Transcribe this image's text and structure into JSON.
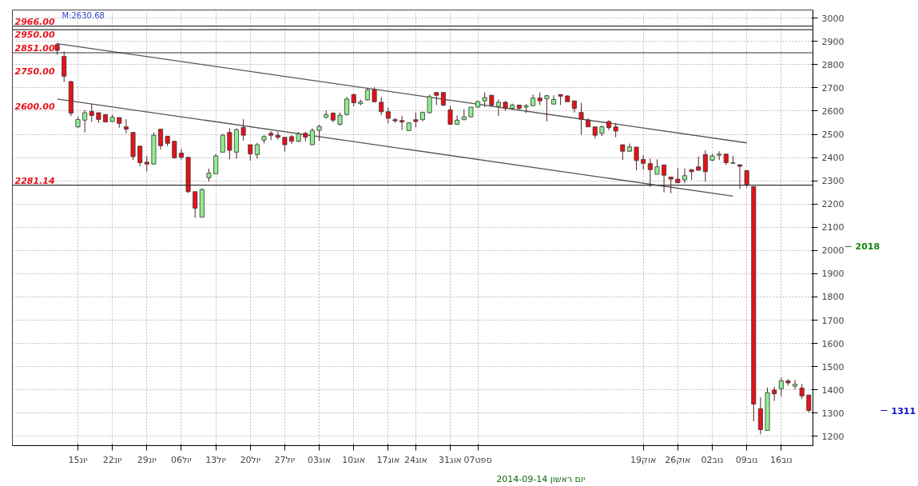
{
  "chart_data": {
    "type": "candlestick",
    "categories": [
      null,
      null,
      null,
      "15יונ",
      null,
      null,
      null,
      null,
      "22יונ",
      null,
      null,
      null,
      null,
      "29יונ",
      null,
      null,
      null,
      null,
      "06יול",
      null,
      null,
      null,
      null,
      "13יול",
      null,
      null,
      null,
      null,
      "20יול",
      null,
      null,
      null,
      null,
      "27יול",
      null,
      null,
      null,
      null,
      "03אוג",
      null,
      null,
      null,
      null,
      "10אוג",
      null,
      null,
      null,
      null,
      "17אוג",
      null,
      null,
      null,
      "24אוג",
      null,
      null,
      null,
      null,
      "31אוג",
      null,
      null,
      null,
      "07ספט",
      null,
      null,
      null,
      null,
      null,
      null,
      null,
      null,
      null,
      null,
      null,
      null,
      null,
      null,
      null,
      null,
      null,
      null,
      null,
      null,
      null,
      null,
      null,
      "19אוק",
      null,
      null,
      null,
      null,
      "26אוק",
      null,
      null,
      null,
      null,
      "02נוב",
      null,
      null,
      null,
      null,
      "09נוב",
      null,
      null,
      null,
      null,
      "16נוב",
      null,
      null,
      null,
      null
    ],
    "ohlc": [
      [
        2886,
        2894,
        2842,
        2861
      ],
      [
        2835,
        2857,
        2725,
        2750
      ],
      [
        2727,
        2730,
        2578,
        2591
      ],
      [
        2532,
        2575,
        2528,
        2564
      ],
      [
        2561,
        2605,
        2508,
        2593
      ],
      [
        2598,
        2631,
        2553,
        2581
      ],
      [
        2593,
        2593,
        2549,
        2564
      ],
      [
        2585,
        2587,
        2553,
        2553
      ],
      [
        2555,
        2585,
        2553,
        2573
      ],
      [
        2572,
        2572,
        2528,
        2547
      ],
      [
        2532,
        2565,
        2504,
        2522
      ],
      [
        2508,
        2508,
        2389,
        2404
      ],
      [
        2449,
        2449,
        2363,
        2378
      ],
      [
        2380,
        2407,
        2340,
        2372
      ],
      [
        2372,
        2508,
        2368,
        2496
      ],
      [
        2522,
        2522,
        2434,
        2451
      ],
      [
        2492,
        2492,
        2449,
        2461
      ],
      [
        2470,
        2470,
        2395,
        2399
      ],
      [
        2419,
        2437,
        2392,
        2401
      ],
      [
        2401,
        2401,
        2247,
        2253
      ],
      [
        2253,
        2253,
        2141,
        2182
      ],
      [
        2143,
        2268,
        2143,
        2262
      ],
      [
        2313,
        2352,
        2297,
        2333
      ],
      [
        2330,
        2415,
        2330,
        2407
      ],
      [
        2423,
        2502,
        2423,
        2496
      ],
      [
        2508,
        2526,
        2392,
        2431
      ],
      [
        2423,
        2526,
        2395,
        2520
      ],
      [
        2529,
        2565,
        2472,
        2496
      ],
      [
        2455,
        2455,
        2387,
        2416
      ],
      [
        2413,
        2463,
        2395,
        2455
      ],
      [
        2475,
        2496,
        2461,
        2490
      ],
      [
        2504,
        2514,
        2475,
        2496
      ],
      [
        2496,
        2511,
        2478,
        2487
      ],
      [
        2487,
        2487,
        2425,
        2455
      ],
      [
        2490,
        2496,
        2458,
        2470
      ],
      [
        2470,
        2510,
        2466,
        2502
      ],
      [
        2504,
        2510,
        2470,
        2487
      ],
      [
        2455,
        2526,
        2455,
        2517
      ],
      [
        2517,
        2541,
        2472,
        2534
      ],
      [
        2573,
        2603,
        2569,
        2585
      ],
      [
        2591,
        2595,
        2552,
        2561
      ],
      [
        2543,
        2594,
        2538,
        2582
      ],
      [
        2585,
        2660,
        2580,
        2652
      ],
      [
        2671,
        2675,
        2620,
        2636
      ],
      [
        2632,
        2650,
        2625,
        2640
      ],
      [
        2648,
        2697,
        2645,
        2691
      ],
      [
        2691,
        2703,
        2637,
        2640
      ],
      [
        2638,
        2660,
        2583,
        2597
      ],
      [
        2597,
        2615,
        2547,
        2569
      ],
      [
        2563,
        2570,
        2550,
        2558
      ],
      [
        2559,
        2580,
        2518,
        2553
      ],
      [
        2516,
        2552,
        2514,
        2549
      ],
      [
        2563,
        2594,
        2530,
        2555
      ],
      [
        2563,
        2597,
        2556,
        2594
      ],
      [
        2593,
        2670,
        2590,
        2662
      ],
      [
        2680,
        2680,
        2626,
        2668
      ],
      [
        2680,
        2680,
        2620,
        2626
      ],
      [
        2605,
        2623,
        2543,
        2543
      ],
      [
        2543,
        2581,
        2543,
        2561
      ],
      [
        2563,
        2608,
        2561,
        2575
      ],
      [
        2575,
        2617,
        2575,
        2617
      ],
      [
        2617,
        2644,
        2614,
        2641
      ],
      [
        2644,
        2680,
        2617,
        2658
      ],
      [
        2668,
        2668,
        2617,
        2626
      ],
      [
        2620,
        2650,
        2579,
        2638
      ],
      [
        2638,
        2644,
        2600,
        2612
      ],
      [
        2612,
        2632,
        2605,
        2626
      ],
      [
        2626,
        2626,
        2605,
        2612
      ],
      [
        2617,
        2630,
        2591,
        2623
      ],
      [
        2623,
        2671,
        2623,
        2656
      ],
      [
        2656,
        2680,
        2626,
        2644
      ],
      [
        2653,
        2670,
        2555,
        2666
      ],
      [
        2630,
        2668,
        2630,
        2650
      ],
      [
        2671,
        2671,
        2626,
        2664
      ],
      [
        2665,
        2668,
        2640,
        2640
      ],
      [
        2644,
        2644,
        2593,
        2611
      ],
      [
        2594,
        2635,
        2498,
        2565
      ],
      [
        2561,
        2569,
        2532,
        2532
      ],
      [
        2532,
        2532,
        2482,
        2496
      ],
      [
        2504,
        2538,
        2492,
        2532
      ],
      [
        2555,
        2561,
        2517,
        2529
      ],
      [
        2532,
        2549,
        2487,
        2514
      ],
      [
        2455,
        2455,
        2389,
        2427
      ],
      [
        2427,
        2460,
        2425,
        2446
      ],
      [
        2445,
        2445,
        2345,
        2387
      ],
      [
        2392,
        2410,
        2348,
        2375
      ],
      [
        2374,
        2395,
        2273,
        2348
      ],
      [
        2328,
        2392,
        2328,
        2360
      ],
      [
        2368,
        2368,
        2250,
        2324
      ],
      [
        2316,
        2316,
        2247,
        2307
      ],
      [
        2307,
        2354,
        2291,
        2291
      ],
      [
        2304,
        2354,
        2289,
        2322
      ],
      [
        2348,
        2348,
        2304,
        2339
      ],
      [
        2360,
        2404,
        2345,
        2345
      ],
      [
        2413,
        2431,
        2297,
        2339
      ],
      [
        2389,
        2415,
        2384,
        2407
      ],
      [
        2410,
        2427,
        2389,
        2415
      ],
      [
        2415,
        2415,
        2368,
        2378
      ],
      [
        2375,
        2407,
        2375,
        2377
      ],
      [
        2369,
        2369,
        2265,
        2362
      ],
      [
        2344,
        2344,
        2271,
        2283
      ],
      [
        2275,
        2275,
        1264,
        1339
      ],
      [
        1319,
        1369,
        1209,
        1229
      ],
      [
        1225,
        1410,
        1225,
        1388
      ],
      [
        1399,
        1413,
        1352,
        1383
      ],
      [
        1405,
        1454,
        1372,
        1439
      ],
      [
        1439,
        1446,
        1419,
        1430
      ],
      [
        1416,
        1443,
        1402,
        1424
      ],
      [
        1408,
        1426,
        1361,
        1374
      ],
      [
        1378,
        1378,
        1303,
        1311
      ]
    ],
    "colors": [
      "#e8101a",
      "#e8101a",
      "#e8101a",
      "#90ee90",
      "#90ee90",
      "#e8101a",
      "#e8101a",
      "#e8101a",
      "#90ee90",
      "#e8101a",
      "#e8101a",
      "#e8101a",
      "#e8101a",
      "#e8101a",
      "#90ee90",
      "#e8101a",
      "#e8101a",
      "#e8101a",
      "#e8101a",
      "#e8101a",
      "#e8101a",
      "#90ee90",
      "#90ee90",
      "#90ee90",
      "#90ee90",
      "#e8101a",
      "#90ee90",
      "#e8101a",
      "#e8101a",
      "#90ee90",
      "#90ee90",
      "#e8101a",
      "#e8101a",
      "#e8101a",
      "#e8101a",
      "#90ee90",
      "#e8101a",
      "#90ee90",
      "#90ee90",
      "#90ee90",
      "#e8101a",
      "#90ee90",
      "#90ee90",
      "#e8101a",
      "#90ee90",
      "#90ee90",
      "#e8101a",
      "#e8101a",
      "#e8101a",
      "#e8101a",
      "#e8101a",
      "#90ee90",
      "#e8101a",
      "#90ee90",
      "#90ee90",
      "#e8101a",
      "#e8101a",
      "#e8101a",
      "#90ee90",
      "#90ee90",
      "#90ee90",
      "#90ee90",
      "#90ee90",
      "#e8101a",
      "#90ee90",
      "#e8101a",
      "#90ee90",
      "#e8101a",
      "#90ee90",
      "#90ee90",
      "#e8101a",
      "#90ee90",
      "#90ee90",
      "#e8101a",
      "#e8101a",
      "#e8101a",
      "#e8101a",
      "#e8101a",
      "#e8101a",
      "#90ee90",
      "#e8101a",
      "#e8101a",
      "#e8101a",
      "#90ee90",
      "#e8101a",
      "#e8101a",
      "#e8101a",
      "#90ee90",
      "#e8101a",
      "#e8101a",
      "#e8101a",
      "#90ee90",
      "#e8101a",
      "#e8101a",
      "#e8101a",
      "#90ee90",
      "#90ee90",
      "#e8101a",
      "#90ee90",
      "#e8101a",
      "#e8101a",
      "#e8101a",
      "#e8101a",
      "#90ee90",
      "#e8101a",
      "#90ee90",
      "#e8101a",
      "#90ee90",
      "#e8101a",
      "#e8101a"
    ],
    "series": [
      {
        "type": "line",
        "color": "#555555",
        "values": [
          2890,
          null,
          null,
          null,
          null,
          null,
          null,
          null,
          null,
          null,
          null,
          null,
          null,
          null,
          null,
          null,
          null,
          null,
          null,
          null,
          null,
          null,
          null,
          null,
          null,
          null,
          null,
          null,
          null,
          null,
          null,
          null,
          null,
          null,
          null,
          null,
          null,
          null,
          null,
          null,
          null,
          null,
          null,
          null,
          null,
          null,
          null,
          null,
          null,
          null,
          null,
          null,
          null,
          null,
          null,
          null,
          null,
          null,
          null,
          null,
          null,
          null,
          null,
          null,
          null,
          null,
          null,
          null,
          null,
          null,
          null,
          null,
          null,
          null,
          null,
          null,
          null,
          null,
          null,
          null,
          null,
          null,
          null,
          null,
          null,
          null,
          null,
          null,
          null,
          null,
          null,
          null,
          null,
          null,
          null,
          null,
          null,
          null,
          null,
          null,
          2463,
          null,
          null,
          null,
          null,
          null,
          null,
          null,
          null,
          null
        ]
      },
      {
        "type": "line",
        "color": "#555555",
        "values": [
          2652,
          null,
          null,
          null,
          null,
          null,
          null,
          null,
          null,
          null,
          null,
          null,
          null,
          null,
          null,
          null,
          null,
          null,
          null,
          null,
          null,
          null,
          null,
          null,
          null,
          null,
          null,
          null,
          null,
          null,
          null,
          null,
          null,
          null,
          null,
          null,
          null,
          null,
          null,
          null,
          null,
          null,
          null,
          null,
          null,
          null,
          null,
          null,
          null,
          null,
          null,
          null,
          null,
          null,
          null,
          null,
          null,
          null,
          null,
          null,
          null,
          null,
          null,
          null,
          null,
          null,
          null,
          null,
          null,
          null,
          null,
          null,
          null,
          null,
          null,
          null,
          null,
          null,
          null,
          null,
          null,
          null,
          null,
          null,
          null,
          null,
          null,
          null,
          null,
          null,
          null,
          null,
          null,
          null,
          null,
          null,
          null,
          null,
          2234,
          null,
          null,
          null,
          null,
          null,
          null,
          null,
          null,
          null,
          null,
          null
        ]
      }
    ],
    "ylim": [
      1160,
      3035
    ],
    "yticks": [
      1200,
      1300,
      1400,
      1500,
      1600,
      1700,
      1800,
      1900,
      2000,
      2100,
      2200,
      2300,
      2400,
      2500,
      2600,
      2700,
      2800,
      2900,
      3000
    ],
    "grid": true,
    "ref_lines": [
      {
        "axis": "y",
        "value": 2966,
        "label": "2966.00",
        "color": "#333333"
      },
      {
        "axis": "y",
        "value": 2950,
        "label": "2950.00",
        "color": "#333333"
      },
      {
        "axis": "y",
        "value": 2851,
        "label": "2851.00",
        "color": "#333333"
      },
      {
        "axis": "y",
        "value": 2281.14,
        "label": "2281.14",
        "color": "#333333"
      }
    ],
    "annotations": [
      "M:2630.68",
      "2750.00",
      "2600.00",
      "2018",
      "1311",
      "2014-09-14 יום ראשון"
    ]
  }
}
